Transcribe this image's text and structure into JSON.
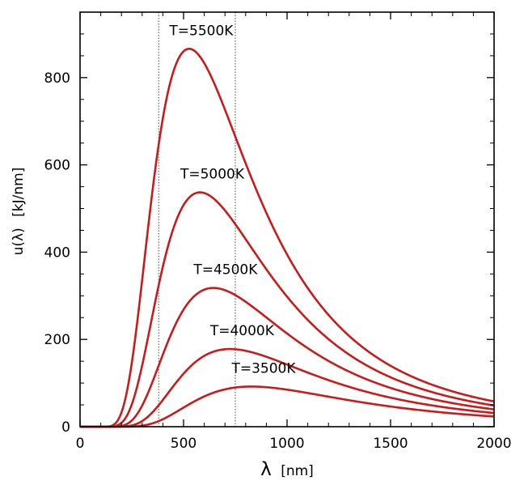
{
  "chart_data": {
    "type": "line",
    "title": "",
    "xlabel_symbol": "λ",
    "xlabel_unit": "[nm]",
    "ylabel_main": "u(λ)",
    "ylabel_unit": "[kJ/nm]",
    "xlim": [
      0,
      2000
    ],
    "ylim": [
      0,
      950
    ],
    "xticks": [
      0,
      500,
      1000,
      1500,
      2000
    ],
    "yticks": [
      0,
      200,
      400,
      600,
      800
    ],
    "grid": false,
    "line_color": "#cc1a1a",
    "visible_band_nm": [
      380,
      750
    ],
    "series": [
      {
        "label": "T=3500K",
        "T": 3500,
        "peak_x": 828,
        "peak_y": 92
      },
      {
        "label": "T=4000K",
        "T": 4000,
        "peak_x": 724,
        "peak_y": 178
      },
      {
        "label": "T=4500K",
        "T": 4500,
        "peak_x": 644,
        "peak_y": 318
      },
      {
        "label": "T=5000K",
        "T": 5000,
        "peak_x": 580,
        "peak_y": 537
      },
      {
        "label": "T=5500K",
        "T": 5500,
        "peak_x": 527,
        "peak_y": 866
      }
    ]
  }
}
